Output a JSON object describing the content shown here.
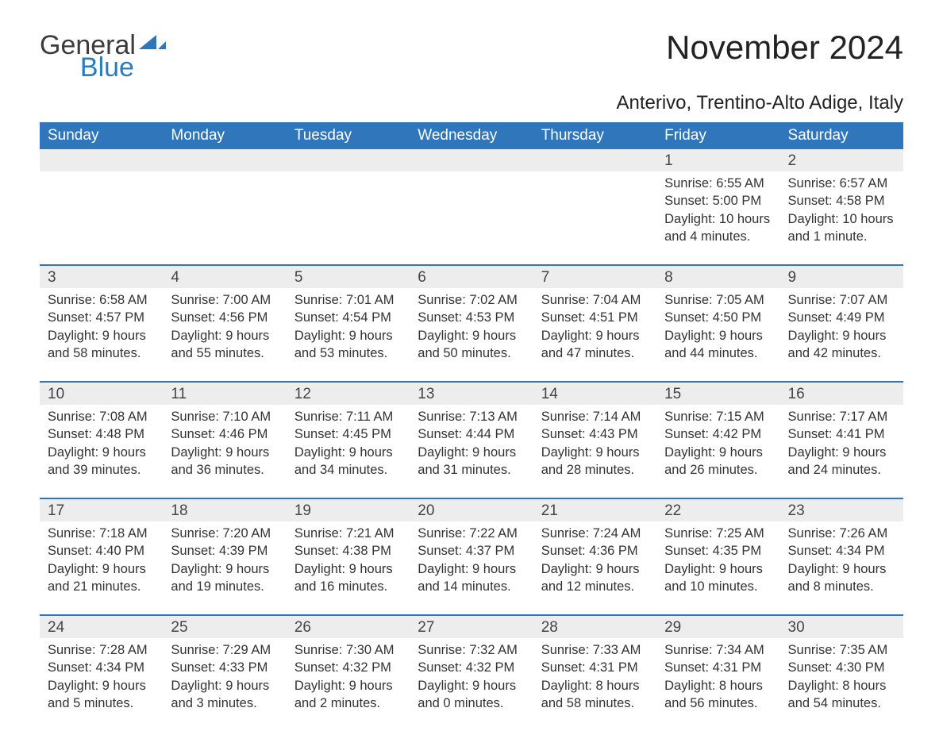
{
  "brand": {
    "name_upper": "General",
    "name_lower": "Blue",
    "text_color_upper": "#3b3b3b",
    "text_color_lower": "#2a7cc2",
    "mark_color": "#2f77ba"
  },
  "header": {
    "title": "November 2024",
    "location": "Anterivo, Trentino-Alto Adige, Italy",
    "title_fontsize": 42,
    "location_fontsize": 24,
    "title_color": "#222222"
  },
  "calendar": {
    "header_bg": "#2f77ba",
    "header_fg": "#ffffff",
    "daynum_bg": "#ededed",
    "sep_color": "#2f77ba",
    "text_color": "#333333",
    "col_width_pct": 14.2857,
    "days_of_week": [
      "Sunday",
      "Monday",
      "Tuesday",
      "Wednesday",
      "Thursday",
      "Friday",
      "Saturday"
    ],
    "weeks": [
      [
        null,
        null,
        null,
        null,
        null,
        {
          "n": "1",
          "sunrise": "6:55 AM",
          "sunset": "5:00 PM",
          "daylight": "10 hours and 4 minutes."
        },
        {
          "n": "2",
          "sunrise": "6:57 AM",
          "sunset": "4:58 PM",
          "daylight": "10 hours and 1 minute."
        }
      ],
      [
        {
          "n": "3",
          "sunrise": "6:58 AM",
          "sunset": "4:57 PM",
          "daylight": "9 hours and 58 minutes."
        },
        {
          "n": "4",
          "sunrise": "7:00 AM",
          "sunset": "4:56 PM",
          "daylight": "9 hours and 55 minutes."
        },
        {
          "n": "5",
          "sunrise": "7:01 AM",
          "sunset": "4:54 PM",
          "daylight": "9 hours and 53 minutes."
        },
        {
          "n": "6",
          "sunrise": "7:02 AM",
          "sunset": "4:53 PM",
          "daylight": "9 hours and 50 minutes."
        },
        {
          "n": "7",
          "sunrise": "7:04 AM",
          "sunset": "4:51 PM",
          "daylight": "9 hours and 47 minutes."
        },
        {
          "n": "8",
          "sunrise": "7:05 AM",
          "sunset": "4:50 PM",
          "daylight": "9 hours and 44 minutes."
        },
        {
          "n": "9",
          "sunrise": "7:07 AM",
          "sunset": "4:49 PM",
          "daylight": "9 hours and 42 minutes."
        }
      ],
      [
        {
          "n": "10",
          "sunrise": "7:08 AM",
          "sunset": "4:48 PM",
          "daylight": "9 hours and 39 minutes."
        },
        {
          "n": "11",
          "sunrise": "7:10 AM",
          "sunset": "4:46 PM",
          "daylight": "9 hours and 36 minutes."
        },
        {
          "n": "12",
          "sunrise": "7:11 AM",
          "sunset": "4:45 PM",
          "daylight": "9 hours and 34 minutes."
        },
        {
          "n": "13",
          "sunrise": "7:13 AM",
          "sunset": "4:44 PM",
          "daylight": "9 hours and 31 minutes."
        },
        {
          "n": "14",
          "sunrise": "7:14 AM",
          "sunset": "4:43 PM",
          "daylight": "9 hours and 28 minutes."
        },
        {
          "n": "15",
          "sunrise": "7:15 AM",
          "sunset": "4:42 PM",
          "daylight": "9 hours and 26 minutes."
        },
        {
          "n": "16",
          "sunrise": "7:17 AM",
          "sunset": "4:41 PM",
          "daylight": "9 hours and 24 minutes."
        }
      ],
      [
        {
          "n": "17",
          "sunrise": "7:18 AM",
          "sunset": "4:40 PM",
          "daylight": "9 hours and 21 minutes."
        },
        {
          "n": "18",
          "sunrise": "7:20 AM",
          "sunset": "4:39 PM",
          "daylight": "9 hours and 19 minutes."
        },
        {
          "n": "19",
          "sunrise": "7:21 AM",
          "sunset": "4:38 PM",
          "daylight": "9 hours and 16 minutes."
        },
        {
          "n": "20",
          "sunrise": "7:22 AM",
          "sunset": "4:37 PM",
          "daylight": "9 hours and 14 minutes."
        },
        {
          "n": "21",
          "sunrise": "7:24 AM",
          "sunset": "4:36 PM",
          "daylight": "9 hours and 12 minutes."
        },
        {
          "n": "22",
          "sunrise": "7:25 AM",
          "sunset": "4:35 PM",
          "daylight": "9 hours and 10 minutes."
        },
        {
          "n": "23",
          "sunrise": "7:26 AM",
          "sunset": "4:34 PM",
          "daylight": "9 hours and 8 minutes."
        }
      ],
      [
        {
          "n": "24",
          "sunrise": "7:28 AM",
          "sunset": "4:34 PM",
          "daylight": "9 hours and 5 minutes."
        },
        {
          "n": "25",
          "sunrise": "7:29 AM",
          "sunset": "4:33 PM",
          "daylight": "9 hours and 3 minutes."
        },
        {
          "n": "26",
          "sunrise": "7:30 AM",
          "sunset": "4:32 PM",
          "daylight": "9 hours and 2 minutes."
        },
        {
          "n": "27",
          "sunrise": "7:32 AM",
          "sunset": "4:32 PM",
          "daylight": "9 hours and 0 minutes."
        },
        {
          "n": "28",
          "sunrise": "7:33 AM",
          "sunset": "4:31 PM",
          "daylight": "8 hours and 58 minutes."
        },
        {
          "n": "29",
          "sunrise": "7:34 AM",
          "sunset": "4:31 PM",
          "daylight": "8 hours and 56 minutes."
        },
        {
          "n": "30",
          "sunrise": "7:35 AM",
          "sunset": "4:30 PM",
          "daylight": "8 hours and 54 minutes."
        }
      ]
    ],
    "labels": {
      "sunrise": "Sunrise:",
      "sunset": "Sunset:",
      "daylight": "Daylight:"
    }
  }
}
